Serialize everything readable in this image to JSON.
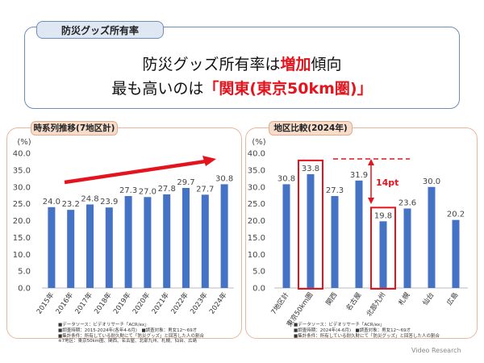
{
  "header": {
    "tab": "防災グッズ所有率",
    "line1_prefix": "防災グッズ所有率は",
    "line1_accent": "増加",
    "line1_suffix": "傾向",
    "line2_prefix": "最も高いのは",
    "line2_accent": "「関東(東京50km圏)」"
  },
  "left_panel": {
    "tab": "時系列推移(7地区計)",
    "notes": [
      "■データソース：ビデオリサーチ「ACR/ex」",
      "■調査時期：2015-2024年(各年4-6月)　■調査対象：男女12～69才",
      "■集計条件：所有している耐久財にて「防災グッズ」と回答した人の割合",
      "※7地区：東京50km圏、関西、名古屋、北部九州、札幌、仙台、広島"
    ]
  },
  "right_panel": {
    "tab": "地区比較(2024年)",
    "notes": [
      "■データソース：ビデオリサーチ「ACR/ex」",
      "■調査時期：2024年(4-6月)　■調査対象：男女12～69才",
      "■集計条件：所有している耐久財にて「防災グッズ」と回答した人の割合"
    ]
  },
  "annotation": {
    "diff_label": "14pt"
  },
  "brand": "Video Research",
  "colors": {
    "bar": "#4472c4",
    "accent": "#e4141e",
    "panel_border": "#e9b79b",
    "header_border": "#6f8db6"
  },
  "chart_data": [
    {
      "type": "bar",
      "ylabel": "(%)",
      "ylim": [
        0,
        40
      ],
      "ytick_step": 5,
      "grid": false,
      "categories": [
        "2015年",
        "2016年",
        "2017年",
        "2018年",
        "2019年",
        "2020年",
        "2021年",
        "2022年",
        "2023年",
        "2024年"
      ],
      "values": [
        24.0,
        23.2,
        24.8,
        23.9,
        27.3,
        27.0,
        27.8,
        29.7,
        27.7,
        30.8
      ],
      "value_labels": [
        "24.0",
        "23.2",
        "24.8",
        "23.9",
        "27.3",
        "27.0",
        "27.8",
        "29.7",
        "27.7",
        "30.8"
      ],
      "trend_arrow": "increasing"
    },
    {
      "type": "bar",
      "ylabel": "(%)",
      "ylim": [
        0,
        40
      ],
      "ytick_step": 5,
      "grid": false,
      "categories": [
        "7地区計",
        "東京50km圏",
        "関西",
        "名古屋",
        "北部九州",
        "札幌",
        "仙台",
        "広島"
      ],
      "values": [
        30.8,
        33.8,
        27.3,
        31.9,
        19.8,
        23.6,
        30.0,
        20.2
      ],
      "value_labels": [
        "30.8",
        "33.8",
        "27.3",
        "31.9",
        "19.8",
        "23.6",
        "30.0",
        "20.2"
      ],
      "highlighted": [
        "東京50km圏",
        "北部九州"
      ]
    }
  ]
}
